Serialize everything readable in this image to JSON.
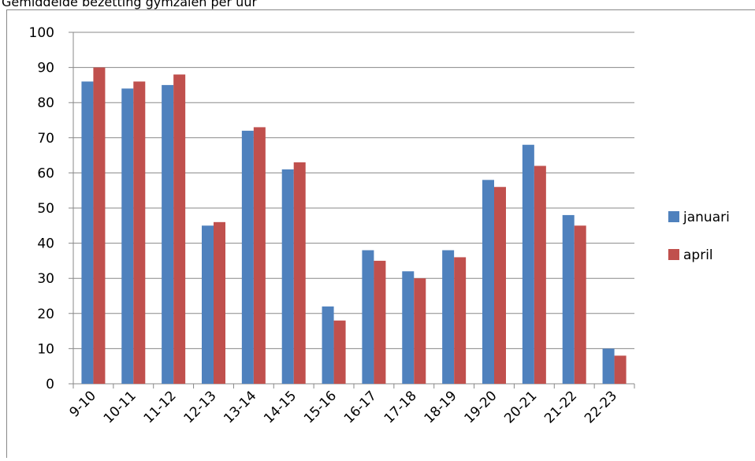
{
  "chart_data": {
    "type": "bar",
    "title": "Gemiddelde bezetting gymzalen per uur",
    "categories": [
      "9-10",
      "10-11",
      "11-12",
      "12-13",
      "13-14",
      "14-15",
      "15-16",
      "16-17",
      "17-18",
      "18-19",
      "19-20",
      "20-21",
      "21-22",
      "22-23"
    ],
    "series": [
      {
        "name": "januari",
        "color": "#4f81bd",
        "values": [
          86,
          84,
          85,
          45,
          72,
          61,
          22,
          38,
          32,
          38,
          58,
          68,
          48,
          10
        ]
      },
      {
        "name": "april",
        "color": "#c0504d",
        "values": [
          90,
          86,
          88,
          46,
          73,
          63,
          18,
          35,
          30,
          36,
          56,
          62,
          45,
          8
        ]
      }
    ],
    "ylim": [
      0,
      100
    ],
    "yticks": [
      0,
      10,
      20,
      30,
      40,
      50,
      60,
      70,
      80,
      90,
      100
    ],
    "grid": true,
    "legend": "right"
  }
}
